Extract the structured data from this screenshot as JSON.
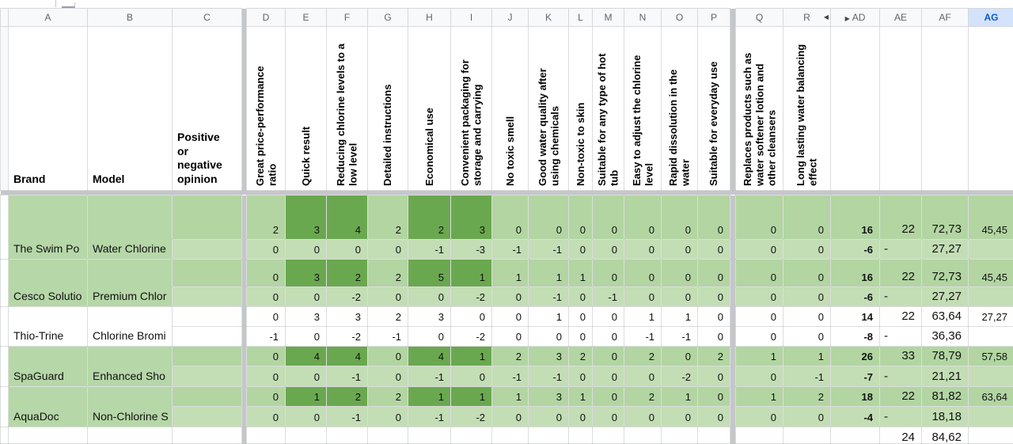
{
  "colors": {
    "band_green": "#b6d7a8",
    "band_green_alt": "#c3ddb5",
    "dark_green": "#6aa84f",
    "selected_header_bg": "#d3e3fd",
    "selected_header_text": "#0b57d0",
    "frozen_divider": "#c4c7ca"
  },
  "column_strip": {
    "letters": [
      "A",
      "B",
      "C",
      "D",
      "E",
      "F",
      "G",
      "H",
      "I",
      "J",
      "K",
      "L",
      "M",
      "N",
      "O",
      "P",
      "Q",
      "R",
      "AD",
      "AE",
      "AF",
      "AG"
    ],
    "selected": "AG",
    "collapse_arrow": "◀",
    "expand_arrow": "▶"
  },
  "header_row": {
    "brand": "Brand",
    "model": "Model",
    "opinion": "Positive or negative opinion",
    "criteria": {
      "D": "Great price-performance ratio",
      "E": "Quick result",
      "F": "Reducing chlorine levels to a low level",
      "G": "Detailed instructions",
      "H": "Economical use",
      "I": "Convenient packaging for storage and carrying",
      "J": "No toxic smell",
      "K": "Good water quality after using chemicals",
      "L": "Non-toxic to skin",
      "M": "Suitable for any type of hot tub",
      "N": "Easy to adjust the chlorine level",
      "O": "Rapid dissolution in the water",
      "P": "Suitable for everyday use",
      "Q": "Replaces products such as water softener lotion and other cleansers",
      "R": "Long lasting water balancing effect"
    }
  },
  "products": [
    {
      "brand": "The Swim Po",
      "model": "Water Chlorine",
      "band": "green",
      "highlight": [
        "E",
        "F",
        "H",
        "I"
      ],
      "positive": {
        "D": 2,
        "E": 3,
        "F": 4,
        "G": 2,
        "H": 2,
        "I": 3,
        "J": 0,
        "K": 0,
        "L": 0,
        "M": 0,
        "N": 0,
        "O": 0,
        "P": 0,
        "Q": 0,
        "R": 0,
        "AD": 16,
        "AE": "22",
        "AF": "72,73",
        "AG": "45,45"
      },
      "negative": {
        "D": 0,
        "E": 0,
        "F": 0,
        "G": 0,
        "H": -1,
        "I": -3,
        "J": -1,
        "K": -1,
        "L": 0,
        "M": 0,
        "N": 0,
        "O": 0,
        "P": 0,
        "Q": 0,
        "R": 0,
        "AD": -6,
        "AE": "-",
        "AF": "27,27",
        "AG": ""
      }
    },
    {
      "brand": "Cesco Solutio",
      "model": "Premium Chlor",
      "band": "green",
      "highlight": [
        "E",
        "F",
        "H",
        "I"
      ],
      "positive": {
        "D": 0,
        "E": 3,
        "F": 2,
        "G": 2,
        "H": 5,
        "I": 1,
        "J": 1,
        "K": 1,
        "L": 1,
        "M": 0,
        "N": 0,
        "O": 0,
        "P": 0,
        "Q": 0,
        "R": 0,
        "AD": 16,
        "AE": "22",
        "AF": "72,73",
        "AG": "45,45"
      },
      "negative": {
        "D": 0,
        "E": 0,
        "F": -2,
        "G": 0,
        "H": 0,
        "I": -2,
        "J": 0,
        "K": -1,
        "L": 0,
        "M": -1,
        "N": 0,
        "O": 0,
        "P": 0,
        "Q": 0,
        "R": 0,
        "AD": -6,
        "AE": "-",
        "AF": "27,27",
        "AG": ""
      }
    },
    {
      "brand": "Thio-Trine",
      "model": "Chlorine Bromi",
      "band": "white",
      "highlight": [],
      "positive": {
        "D": 0,
        "E": 3,
        "F": 3,
        "G": 2,
        "H": 3,
        "I": 0,
        "J": 0,
        "K": 1,
        "L": 0,
        "M": 0,
        "N": 1,
        "O": 1,
        "P": 0,
        "Q": 0,
        "R": 0,
        "AD": 14,
        "AE": "22",
        "AF": "63,64",
        "AG": "27,27"
      },
      "negative": {
        "D": -1,
        "E": 0,
        "F": -2,
        "G": -1,
        "H": 0,
        "I": -2,
        "J": 0,
        "K": 0,
        "L": 0,
        "M": 0,
        "N": -1,
        "O": -1,
        "P": 0,
        "Q": 0,
        "R": 0,
        "AD": -8,
        "AE": "-",
        "AF": "36,36",
        "AG": ""
      }
    },
    {
      "brand": "SpaGuard",
      "model": "Enhanced Sho",
      "band": "green",
      "highlight": [
        "E",
        "F",
        "H",
        "I"
      ],
      "positive": {
        "D": 0,
        "E": 4,
        "F": 4,
        "G": 0,
        "H": 4,
        "I": 1,
        "J": 2,
        "K": 3,
        "L": 2,
        "M": 0,
        "N": 2,
        "O": 0,
        "P": 2,
        "Q": 1,
        "R": 1,
        "AD": 26,
        "AE": "33",
        "AF": "78,79",
        "AG": "57,58"
      },
      "negative": {
        "D": 0,
        "E": 0,
        "F": -1,
        "G": 0,
        "H": -1,
        "I": 0,
        "J": -1,
        "K": -1,
        "L": 0,
        "M": 0,
        "N": 0,
        "O": -2,
        "P": 0,
        "Q": 0,
        "R": -1,
        "AD": -7,
        "AE": "-",
        "AF": "21,21",
        "AG": ""
      }
    },
    {
      "brand": "AquaDoc",
      "model": "Non-Chlorine S",
      "band": "green",
      "highlight": [
        "E",
        "F",
        "H",
        "I"
      ],
      "positive": {
        "D": 0,
        "E": 1,
        "F": 2,
        "G": 2,
        "H": 1,
        "I": 1,
        "J": 1,
        "K": 3,
        "L": 1,
        "M": 0,
        "N": 2,
        "O": 1,
        "P": 0,
        "Q": 1,
        "R": 2,
        "AD": 18,
        "AE": "22",
        "AF": "81,82",
        "AG": "63,64"
      },
      "negative": {
        "D": 0,
        "E": 0,
        "F": -1,
        "G": 0,
        "H": -1,
        "I": -2,
        "J": 0,
        "K": 0,
        "L": 0,
        "M": 0,
        "N": 0,
        "O": 0,
        "P": 0,
        "Q": 0,
        "R": 0,
        "AD": -4,
        "AE": "-",
        "AF": "18,18",
        "AG": ""
      }
    }
  ],
  "partial_row": {
    "AE": "24",
    "AF": "84,62"
  }
}
